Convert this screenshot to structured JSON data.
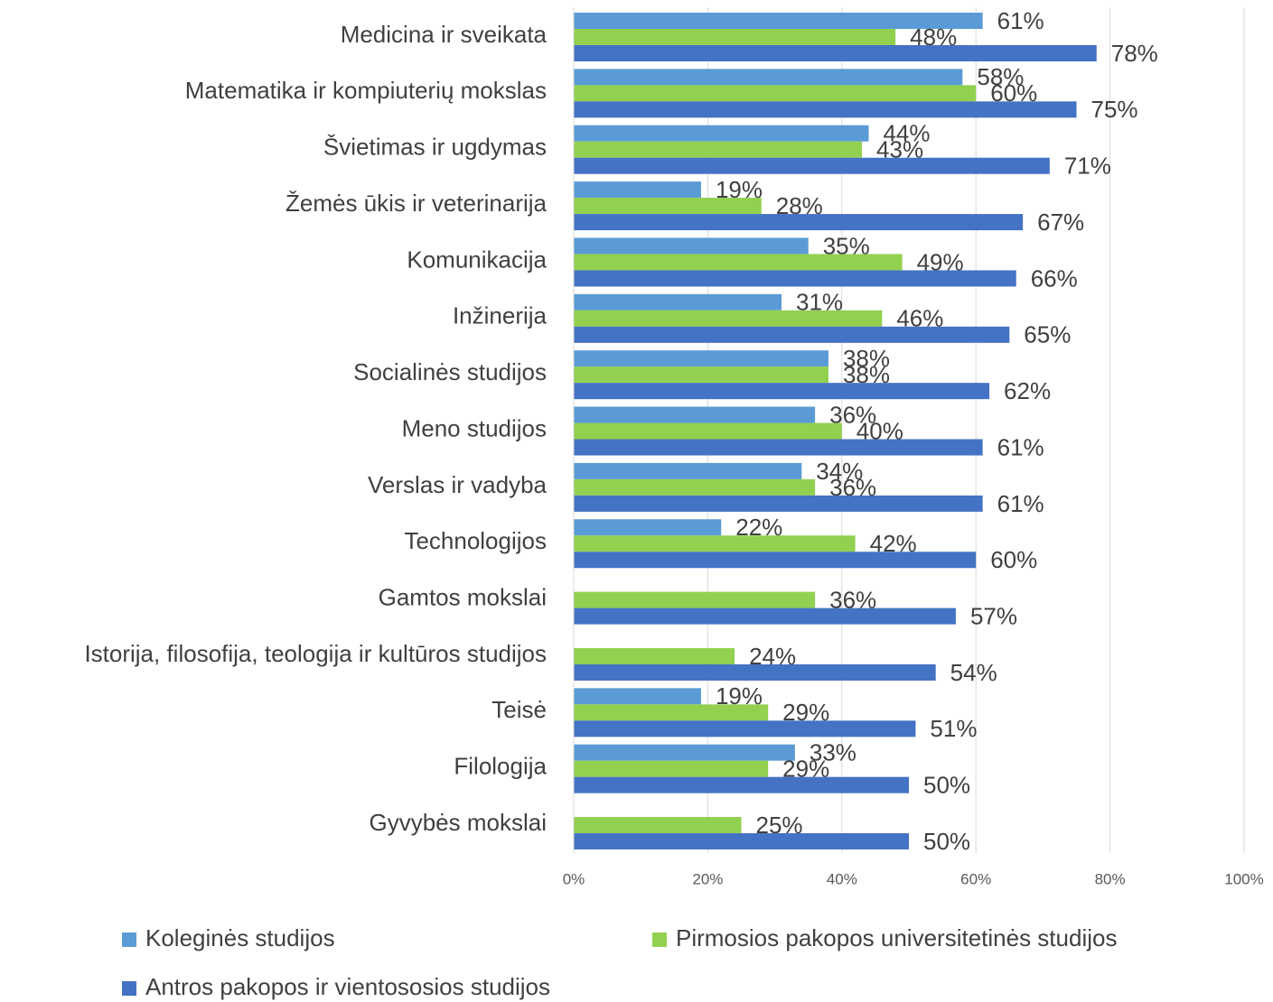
{
  "chart_data": {
    "type": "bar",
    "orientation": "horizontal",
    "categories": [
      "Medicina ir sveikata",
      "Matematika ir kompiuterių mokslas",
      "Švietimas ir ugdymas",
      "Žemės ūkis ir veterinarija",
      "Komunikacija",
      "Inžinerija",
      "Socialinės studijos",
      "Meno studijos",
      "Verslas ir vadyba",
      "Technologijos",
      "Gamtos mokslai",
      "Istorija, filosofija, teologija ir kultūros studijos",
      "Teisė",
      "Filologija",
      "Gyvybės mokslai"
    ],
    "series": [
      {
        "name": "Koleginės studijos",
        "color": "#5b9bd5",
        "values": [
          61,
          58,
          44,
          19,
          35,
          31,
          38,
          36,
          34,
          22,
          null,
          null,
          19,
          33,
          null
        ],
        "value_labels": [
          "61%",
          "58%",
          "44%",
          "19%",
          "35%",
          "31%",
          "38%",
          "36%",
          "34%",
          "22%",
          null,
          null,
          "19%",
          "33%",
          null
        ]
      },
      {
        "name": "Pirmosios pakopos universitetinės studijos",
        "color": "#92d050",
        "values": [
          48,
          60,
          43,
          28,
          49,
          46,
          38,
          40,
          36,
          42,
          36,
          24,
          29,
          29,
          25
        ],
        "value_labels": [
          "48%",
          "60%",
          "43%",
          "28%",
          "49%",
          "46%",
          "38%",
          "40%",
          "36%",
          "42%",
          "36%",
          "24%",
          "29%",
          "29%",
          "25%"
        ]
      },
      {
        "name": "Antros pakopos ir vientososios studijos",
        "color": "#4472c4",
        "values": [
          78,
          75,
          71,
          67,
          66,
          65,
          62,
          61,
          61,
          60,
          57,
          54,
          51,
          50,
          50
        ],
        "value_labels": [
          "78%",
          "75%",
          "71%",
          "67%",
          "66%",
          "65%",
          "62%",
          "61%",
          "61%",
          "60%",
          "57%",
          "54%",
          "51%",
          "50%",
          "50%"
        ]
      }
    ],
    "xlim": [
      0,
      100
    ],
    "xticks": [
      {
        "value": 0,
        "label": "0%"
      },
      {
        "value": 20,
        "label": "20%"
      },
      {
        "value": 40,
        "label": "40%"
      },
      {
        "value": 60,
        "label": "60%"
      },
      {
        "value": 80,
        "label": "80%"
      },
      {
        "value": 100,
        "label": "100%"
      }
    ],
    "grid": true,
    "legend": "bottom"
  }
}
